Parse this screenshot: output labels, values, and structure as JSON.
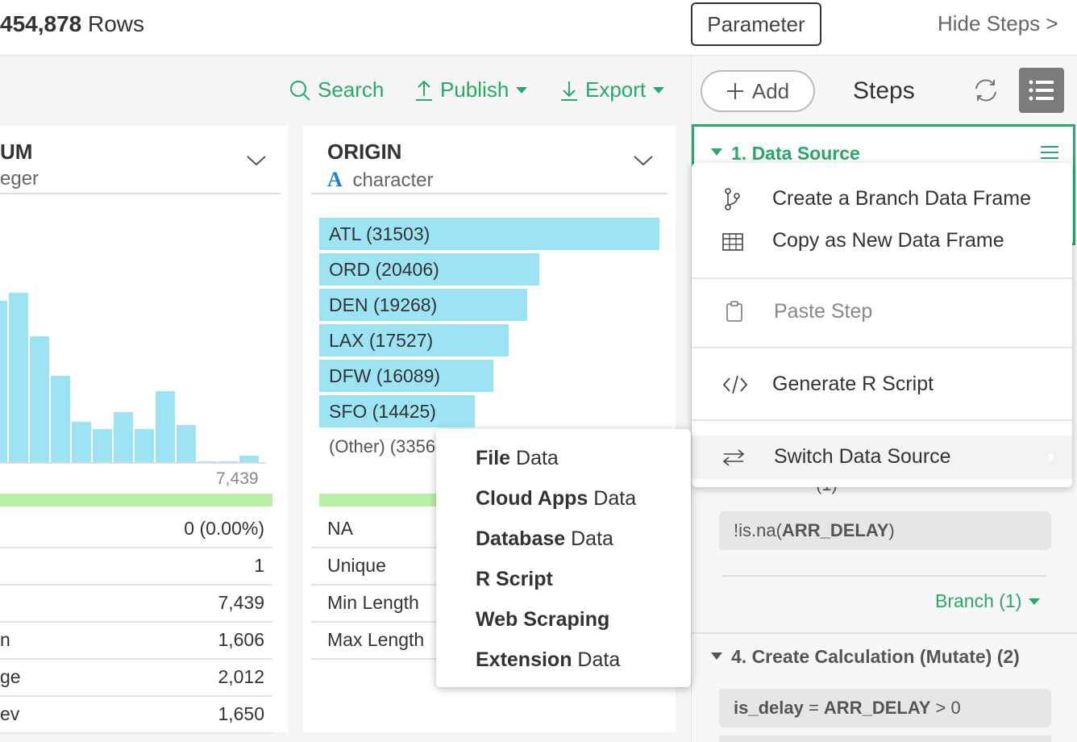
{
  "topbar": {
    "rows_number": "454,878",
    "rows_suffix": " Rows",
    "parameter_label": "Parameter",
    "hide_steps_label": "Hide Steps >"
  },
  "toolbar": {
    "search_label": "Search",
    "publish_label": "Publish",
    "export_label": "Export"
  },
  "left_column": {
    "name": "UM",
    "type": "eger",
    "hist_max_label": "7,439",
    "stats": [
      {
        "label": "",
        "value": "0 (0.00%)"
      },
      {
        "label": "",
        "value": "1"
      },
      {
        "label": "",
        "value": "7,439"
      },
      {
        "label": "n",
        "value": "1,606"
      },
      {
        "label": "ge",
        "value": "2,012"
      },
      {
        "label": "ev",
        "value": "1,650"
      }
    ],
    "histogram_fraction": [
      0.86,
      0.9,
      0.67,
      0.46,
      0.22,
      0.18,
      0.27,
      0.18,
      0.38,
      0.2,
      0.005,
      0.01,
      0.04
    ]
  },
  "origin_column": {
    "name": "ORIGIN",
    "type_icon": "A",
    "type": "character",
    "bars": [
      {
        "label": "ATL (31503)",
        "value": 31503
      },
      {
        "label": "ORD (20406)",
        "value": 20406
      },
      {
        "label": "DEN (19268)",
        "value": 19268
      },
      {
        "label": "LAX (17527)",
        "value": 17527
      },
      {
        "label": "DFW (16089)",
        "value": 16089
      },
      {
        "label": "SFO (14425)",
        "value": 14425
      }
    ],
    "other_label": "(Other) (3356",
    "stats": [
      "NA",
      "Unique",
      "Min Length",
      "Max Length"
    ]
  },
  "steps": {
    "add_label": "Add",
    "title": "Steps",
    "step1_title": "1. Data Source",
    "step3_partial": "(1)",
    "filter_code_prefix": "!is.na(",
    "filter_code_field": "ARR_DELAY",
    "filter_code_suffix": ")",
    "branch_label": "Branch (1)",
    "step4_title": "4. Create Calculation (Mutate) (2)",
    "mutate_code_var": "is_delay",
    "mutate_code_op": " = ",
    "mutate_code_field": "ARR_DELAY",
    "mutate_code_rest": " > 0"
  },
  "menu": {
    "create_branch": "Create a Branch Data Frame",
    "copy_new": "Copy as New Data Frame",
    "paste_step": "Paste Step",
    "generate_r": "Generate R Script",
    "switch_source": "Switch Data Source"
  },
  "submenu": {
    "file_bold": "File",
    "file_rest": " Data",
    "cloud_bold": "Cloud Apps",
    "cloud_rest": " Data",
    "db_bold": "Database",
    "db_rest": " Data",
    "r_bold": "R Script",
    "web_bold": "Web Scraping",
    "ext_bold": "Extension",
    "ext_rest": " Data"
  },
  "colors": {
    "accent_green": "#27a86c",
    "bar_blue": "#9ce4f3",
    "na_green": "#b8f0a8"
  }
}
